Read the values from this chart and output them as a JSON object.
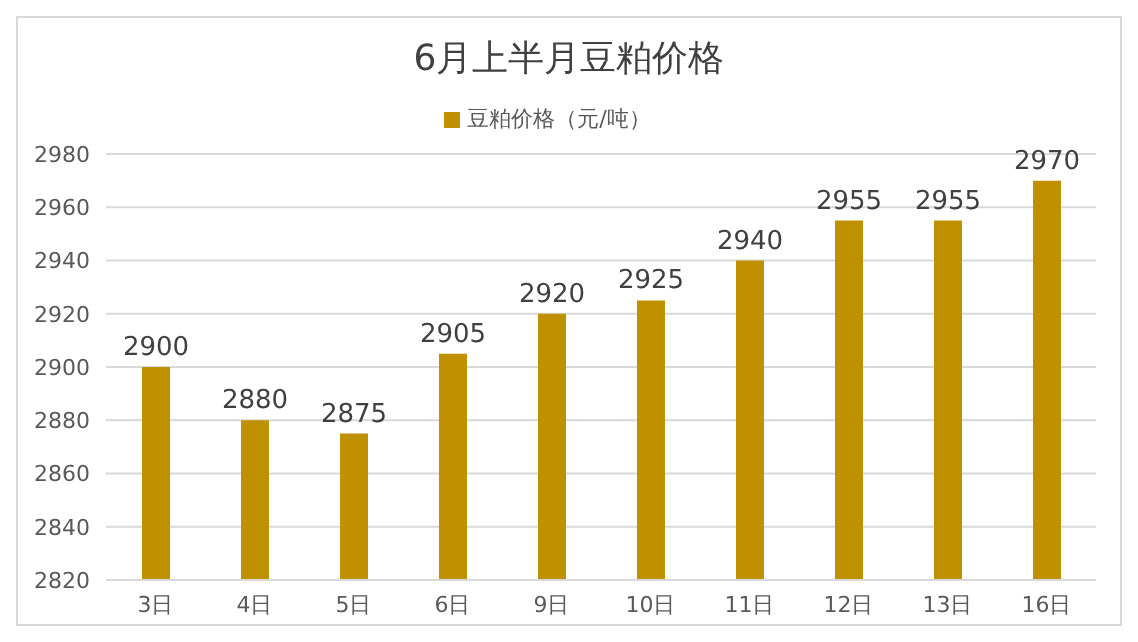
{
  "chart_data": {
    "type": "bar",
    "title": "6月上半月豆粕价格",
    "categories": [
      "3日",
      "4日",
      "5日",
      "6日",
      "9日",
      "10日",
      "11日",
      "12日",
      "13日",
      "16日"
    ],
    "series": [
      {
        "name": "豆粕价格（元/吨）",
        "color": "#bf9000",
        "values": [
          2900,
          2880,
          2875,
          2905,
          2920,
          2925,
          2940,
          2955,
          2955,
          2970
        ]
      }
    ],
    "ylim": [
      2820,
      2980
    ],
    "yticks": [
      2820,
      2840,
      2860,
      2880,
      2900,
      2920,
      2940,
      2960,
      2980
    ],
    "grid": "y",
    "legend": "top",
    "data_labels": true
  }
}
